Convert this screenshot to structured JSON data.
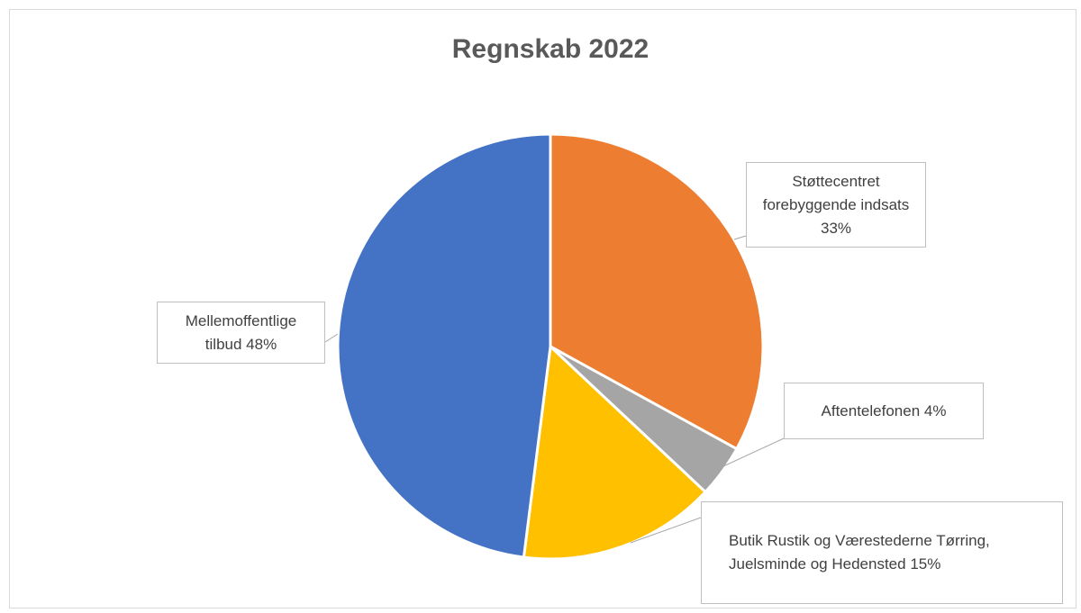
{
  "chart_data": {
    "type": "pie",
    "title": "Regnskab 2022",
    "categories": [
      "Støttecentret forebyggende indsats",
      "Aftentelefonen",
      "Butik Rustik og Værestederne Tørring, Juelsminde og Hedensted",
      "Mellemoffentlige tilbud"
    ],
    "values": [
      33,
      4,
      15,
      48
    ],
    "value_labels": [
      "33%",
      "4%",
      "15%",
      "48%"
    ],
    "colors": [
      "#ed7d31",
      "#a5a5a5",
      "#ffc000",
      "#4472c4"
    ]
  }
}
